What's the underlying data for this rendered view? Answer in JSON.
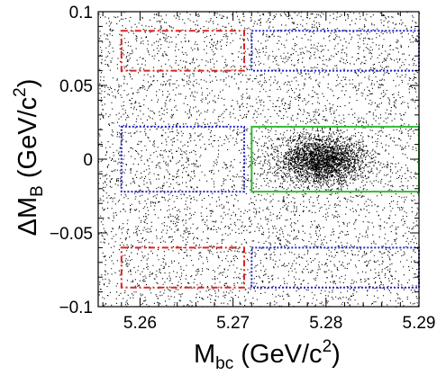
{
  "chart_data": {
    "type": "scatter",
    "title": "",
    "x_axis": {
      "label_main": "M",
      "label_sub": "bc",
      "label_unit": " (GeV/c",
      "label_sup": "2",
      "label_close": ")",
      "range": [
        5.2555,
        5.29
      ],
      "ticks": [
        5.26,
        5.27,
        5.28,
        5.29
      ],
      "tick_labels": [
        "5.26",
        "5.27",
        "5.28",
        "5.29"
      ]
    },
    "y_axis": {
      "label_main": "ΔM",
      "label_sub": "B",
      "label_unit": " (GeV/c",
      "label_sup": "2",
      "label_close": ")",
      "range": [
        -0.1,
        0.1
      ],
      "ticks": [
        -0.1,
        -0.05,
        0,
        0.05,
        0.1
      ],
      "tick_labels": [
        "−0.1",
        "−0.05",
        "0",
        "0.05",
        "0.1"
      ]
    },
    "grid": false,
    "points": {
      "background_density": "uniform",
      "signal_peak": {
        "x": 5.2795,
        "y": 0.0
      }
    },
    "regions": [
      {
        "name": "signal-box",
        "x": [
          5.272,
          5.29
        ],
        "y": [
          -0.022,
          0.022
        ],
        "color": "#33bb33",
        "style": "solid"
      },
      {
        "name": "sideband-top-left",
        "x": [
          5.258,
          5.2712
        ],
        "y": [
          0.06,
          0.087
        ],
        "color": "#dd2222",
        "style": "dash-dot"
      },
      {
        "name": "sideband-bottom-left",
        "x": [
          5.258,
          5.2712
        ],
        "y": [
          -0.087,
          -0.06
        ],
        "color": "#dd2222",
        "style": "dash-dot"
      },
      {
        "name": "sideband-top-right",
        "x": [
          5.272,
          5.29
        ],
        "y": [
          0.06,
          0.087
        ],
        "color": "#2222cc",
        "style": "dotted"
      },
      {
        "name": "sideband-bottom-right",
        "x": [
          5.272,
          5.29
        ],
        "y": [
          -0.087,
          -0.06
        ],
        "color": "#2222cc",
        "style": "dotted"
      },
      {
        "name": "sideband-middle-left",
        "x": [
          5.258,
          5.2712
        ],
        "y": [
          -0.022,
          0.022
        ],
        "color": "#2222cc",
        "style": "dotted"
      }
    ]
  }
}
